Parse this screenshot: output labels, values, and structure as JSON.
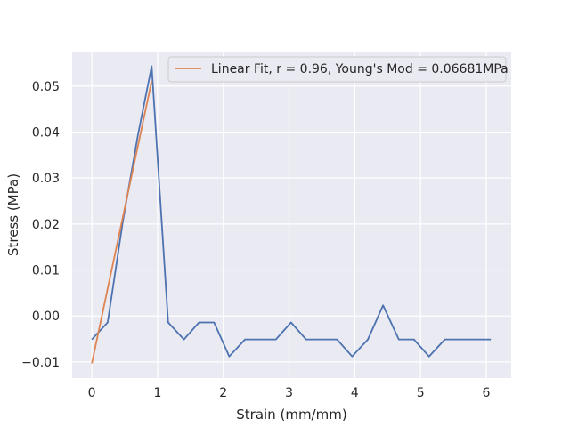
{
  "chart_data": {
    "type": "line",
    "xlabel": "Strain (mm/mm)",
    "ylabel": "Stress (MPa)",
    "xlim": [
      -0.3,
      6.38
    ],
    "ylim": [
      -0.0135,
      0.0575
    ],
    "xticks": [
      0,
      1,
      2,
      3,
      4,
      5,
      6
    ],
    "yticks": [
      -0.01,
      0.0,
      0.01,
      0.02,
      0.03,
      0.04,
      0.05
    ],
    "ytick_labels": [
      "−0.01",
      "0.00",
      "0.01",
      "0.02",
      "0.03",
      "0.04",
      "0.05"
    ],
    "grid": true,
    "legend_position": "top-right",
    "colors": {
      "data": "#4c72b0",
      "fit": "#dd8452",
      "background": "#eaeaf2",
      "grid": "#ffffff"
    },
    "series": [
      {
        "name": "",
        "x": [
          0.0,
          0.24,
          0.47,
          0.7,
          0.91,
          1.16,
          1.4,
          1.63,
          1.86,
          2.09,
          2.33,
          2.56,
          2.8,
          3.03,
          3.26,
          3.5,
          3.73,
          3.96,
          4.2,
          4.43,
          4.67,
          4.9,
          5.13,
          5.37,
          5.6,
          5.84,
          6.07
        ],
        "y": [
          -0.0051,
          -0.0014,
          0.0204,
          0.0393,
          0.0543,
          -0.0014,
          -0.0051,
          -0.0014,
          -0.0014,
          -0.0088,
          -0.0051,
          -0.0051,
          -0.0051,
          -0.0014,
          -0.0051,
          -0.0051,
          -0.0051,
          -0.0088,
          -0.0051,
          0.0023,
          -0.0051,
          -0.0051,
          -0.0088,
          -0.0051,
          -0.0051,
          -0.0051,
          -0.0051
        ]
      },
      {
        "name": "Linear Fit, r = 0.96, Young's Mod = 0.06681MPa",
        "x": [
          0.0,
          0.91
        ],
        "y": [
          -0.0103,
          0.0511
        ]
      }
    ]
  }
}
